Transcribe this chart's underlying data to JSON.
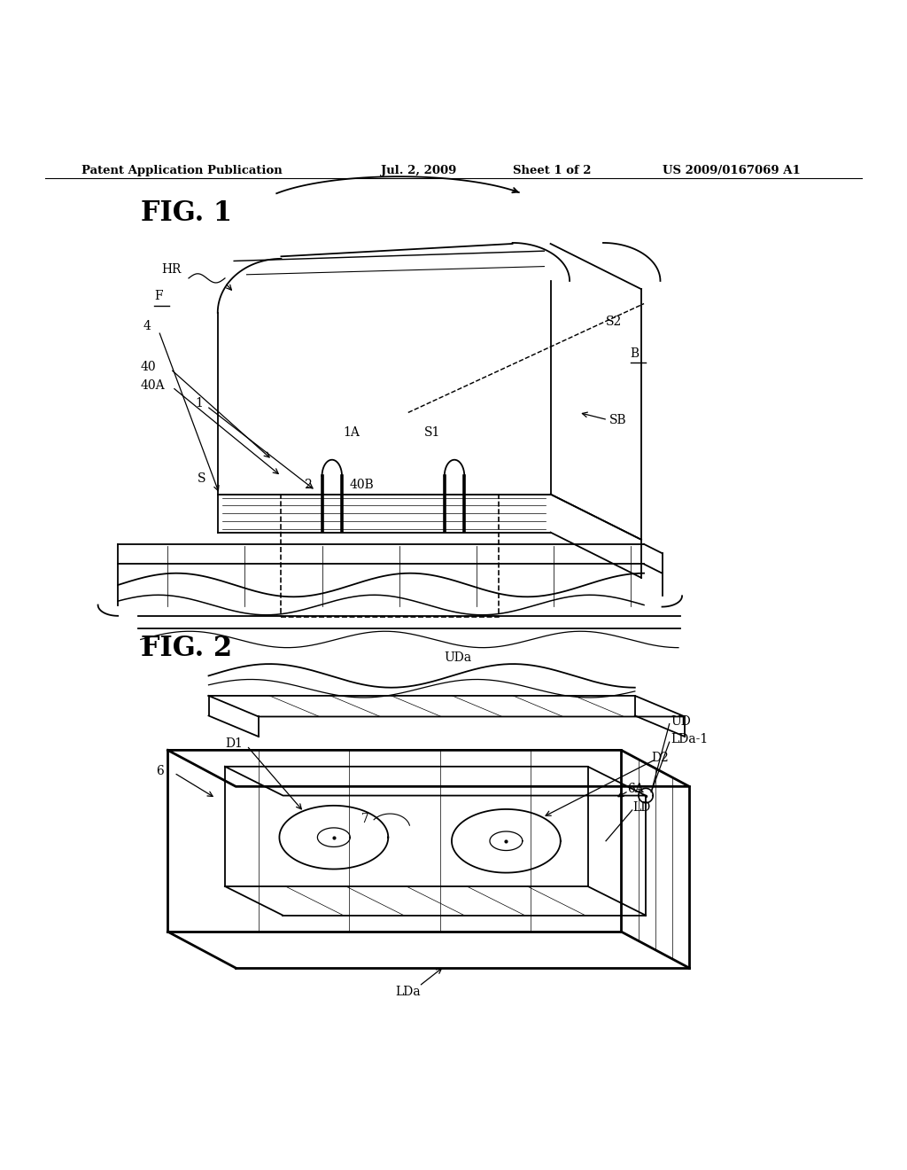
{
  "bg_color": "#ffffff",
  "header_text": "Patent Application Publication",
  "header_date": "Jul. 2, 2009",
  "header_sheet": "Sheet 1 of 2",
  "header_patent": "US 2009/0167069 A1",
  "fig1_label": "FIG. 1",
  "fig2_label": "FIG. 2"
}
